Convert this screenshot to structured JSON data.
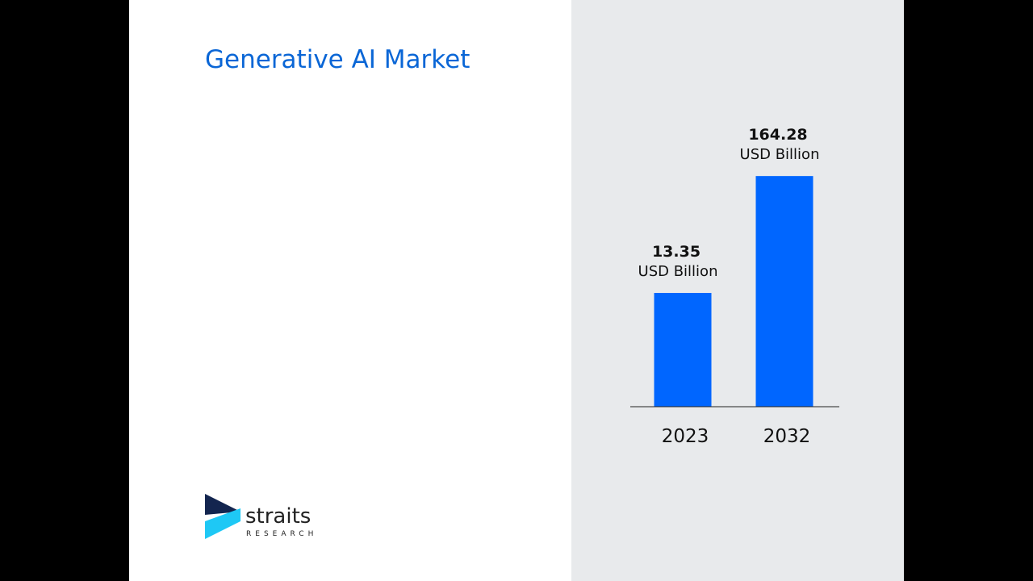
{
  "title": "Generative AI Market",
  "colors": {
    "bar": "#0066ff",
    "title": "#0a66d6",
    "panel": "#e8eaec"
  },
  "logo": {
    "name": "straits",
    "sub": "RESEARCH"
  },
  "chart_data": {
    "type": "bar",
    "categories": [
      "2023",
      "2032"
    ],
    "values": [
      13.35,
      164.28
    ],
    "value_labels": [
      "13.35",
      "164.28"
    ],
    "unit_label": "USD Billion",
    "yscale": "log",
    "grid": false,
    "title": "",
    "xlabel": "",
    "ylabel": ""
  }
}
